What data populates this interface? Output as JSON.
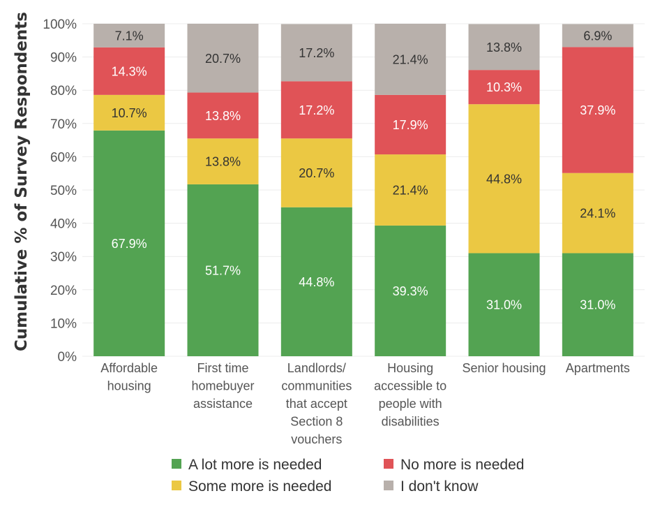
{
  "chart_data": {
    "type": "bar",
    "stacked": true,
    "ylabel": "Cumulative % of Survey Respondents",
    "xlabel": "",
    "ylim": [
      0,
      100
    ],
    "yticks": [
      "0%",
      "10%",
      "20%",
      "30%",
      "40%",
      "50%",
      "60%",
      "70%",
      "80%",
      "90%",
      "100%"
    ],
    "categories": [
      [
        "Affordable",
        "housing"
      ],
      [
        "First time",
        "homebuyer",
        "assistance"
      ],
      [
        "Landlords/",
        "communities",
        "that accept",
        "Section 8",
        "vouchers"
      ],
      [
        "Housing",
        "accessible to",
        "people with",
        "disabilities"
      ],
      [
        "Senior housing"
      ],
      [
        "Apartments"
      ]
    ],
    "series": [
      {
        "name": "A lot more is needed",
        "color": "#53a352",
        "label_color": "#ffffff",
        "values": [
          67.9,
          51.7,
          44.8,
          39.3,
          31.0,
          31.0
        ],
        "labels": [
          "67.9%",
          "51.7%",
          "44.8%",
          "39.3%",
          "31.0%",
          "31.0%"
        ]
      },
      {
        "name": "Some more is needed",
        "color": "#ebc843",
        "label_color": "#333333",
        "values": [
          10.7,
          13.8,
          20.7,
          21.4,
          44.8,
          24.1
        ],
        "labels": [
          "10.7%",
          "13.8%",
          "20.7%",
          "21.4%",
          "44.8%",
          "24.1%"
        ]
      },
      {
        "name": "No more is needed",
        "color": "#e05357",
        "label_color": "#ffffff",
        "values": [
          14.3,
          13.8,
          17.2,
          17.9,
          10.3,
          37.9
        ],
        "labels": [
          "14.3%",
          "13.8%",
          "17.2%",
          "17.9%",
          "10.3%",
          "37.9%"
        ]
      },
      {
        "name": "I don't know",
        "color": "#b8b0ab",
        "label_color": "#333333",
        "values": [
          7.1,
          20.7,
          17.2,
          21.4,
          13.8,
          6.9
        ],
        "labels": [
          "7.1%",
          "20.7%",
          "17.2%",
          "21.4%",
          "13.8%",
          "6.9%"
        ]
      }
    ],
    "legend": {
      "placement": "bottom",
      "entries": [
        "A lot more is needed",
        "No more is needed",
        "Some more is needed",
        "I don't know"
      ]
    },
    "grid": true
  }
}
